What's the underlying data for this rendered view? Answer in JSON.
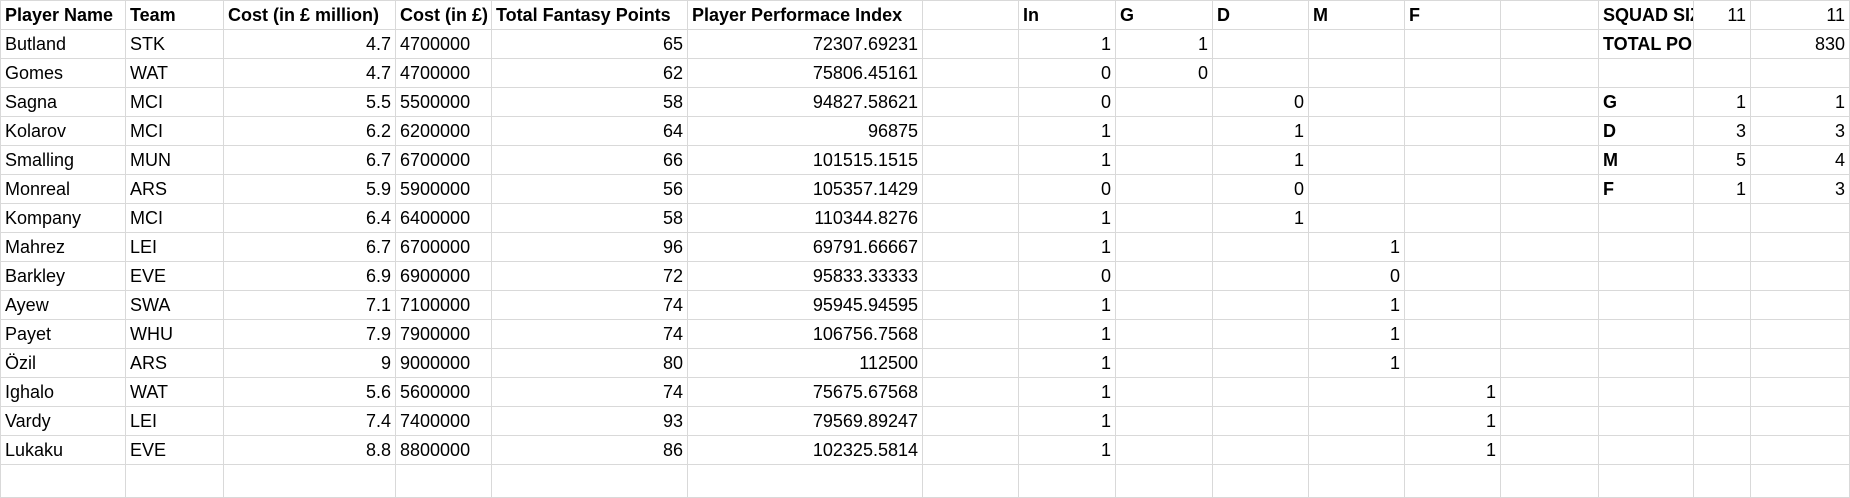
{
  "headers": {
    "player_name": "Player Name",
    "team": "Team",
    "cost_million": "Cost (in £ million)",
    "cost_pounds": "Cost (in £)",
    "total_points": "Total Fantasy Points",
    "ppi": "Player Performace Index",
    "in": "In",
    "g": "G",
    "d": "D",
    "m": "M",
    "f": "F"
  },
  "summary": {
    "squad_size_label": "SQUAD SIZE",
    "squad_size_a": "11",
    "squad_size_b": "11",
    "total_points_label": "TOTAL POINTS",
    "total_points_value": "830",
    "positions": [
      {
        "label": "G",
        "a": "1",
        "b": "1"
      },
      {
        "label": "D",
        "a": "3",
        "b": "3"
      },
      {
        "label": "M",
        "a": "5",
        "b": "4"
      },
      {
        "label": "F",
        "a": "1",
        "b": "3"
      }
    ]
  },
  "rows": [
    {
      "name": "Butland",
      "team": "STK",
      "cost_m": "4.7",
      "cost": "4700000",
      "points": "65",
      "ppi": "72307.69231",
      "in": "1",
      "g": "1",
      "d": "",
      "m": "",
      "f": ""
    },
    {
      "name": "Gomes",
      "team": "WAT",
      "cost_m": "4.7",
      "cost": "4700000",
      "points": "62",
      "ppi": "75806.45161",
      "in": "0",
      "g": "0",
      "d": "",
      "m": "",
      "f": ""
    },
    {
      "name": "Sagna",
      "team": "MCI",
      "cost_m": "5.5",
      "cost": "5500000",
      "points": "58",
      "ppi": "94827.58621",
      "in": "0",
      "g": "",
      "d": "0",
      "m": "",
      "f": ""
    },
    {
      "name": "Kolarov",
      "team": "MCI",
      "cost_m": "6.2",
      "cost": "6200000",
      "points": "64",
      "ppi": "96875",
      "in": "1",
      "g": "",
      "d": "1",
      "m": "",
      "f": ""
    },
    {
      "name": "Smalling",
      "team": "MUN",
      "cost_m": "6.7",
      "cost": "6700000",
      "points": "66",
      "ppi": "101515.1515",
      "in": "1",
      "g": "",
      "d": "1",
      "m": "",
      "f": ""
    },
    {
      "name": "Monreal",
      "team": "ARS",
      "cost_m": "5.9",
      "cost": "5900000",
      "points": "56",
      "ppi": "105357.1429",
      "in": "0",
      "g": "",
      "d": "0",
      "m": "",
      "f": ""
    },
    {
      "name": "Kompany",
      "team": "MCI",
      "cost_m": "6.4",
      "cost": "6400000",
      "points": "58",
      "ppi": "110344.8276",
      "in": "1",
      "g": "",
      "d": "1",
      "m": "",
      "f": ""
    },
    {
      "name": "Mahrez",
      "team": "LEI",
      "cost_m": "6.7",
      "cost": "6700000",
      "points": "96",
      "ppi": "69791.66667",
      "in": "1",
      "g": "",
      "d": "",
      "m": "1",
      "f": ""
    },
    {
      "name": "Barkley",
      "team": "EVE",
      "cost_m": "6.9",
      "cost": "6900000",
      "points": "72",
      "ppi": "95833.33333",
      "in": "0",
      "g": "",
      "d": "",
      "m": "0",
      "f": ""
    },
    {
      "name": "Ayew",
      "team": "SWA",
      "cost_m": "7.1",
      "cost": "7100000",
      "points": "74",
      "ppi": "95945.94595",
      "in": "1",
      "g": "",
      "d": "",
      "m": "1",
      "f": ""
    },
    {
      "name": "Payet",
      "team": "WHU",
      "cost_m": "7.9",
      "cost": "7900000",
      "points": "74",
      "ppi": "106756.7568",
      "in": "1",
      "g": "",
      "d": "",
      "m": "1",
      "f": ""
    },
    {
      "name": "Özil",
      "team": "ARS",
      "cost_m": "9",
      "cost": "9000000",
      "points": "80",
      "ppi": "112500",
      "in": "1",
      "g": "",
      "d": "",
      "m": "1",
      "f": ""
    },
    {
      "name": "Ighalo",
      "team": "WAT",
      "cost_m": "5.6",
      "cost": "5600000",
      "points": "74",
      "ppi": "75675.67568",
      "in": "1",
      "g": "",
      "d": "",
      "m": "",
      "f": "1"
    },
    {
      "name": "Vardy",
      "team": "LEI",
      "cost_m": "7.4",
      "cost": "7400000",
      "points": "93",
      "ppi": "79569.89247",
      "in": "1",
      "g": "",
      "d": "",
      "m": "",
      "f": "1"
    },
    {
      "name": "Lukaku",
      "team": "EVE",
      "cost_m": "8.8",
      "cost": "8800000",
      "points": "86",
      "ppi": "102325.5814",
      "in": "1",
      "g": "",
      "d": "",
      "m": "",
      "f": "1"
    }
  ]
}
